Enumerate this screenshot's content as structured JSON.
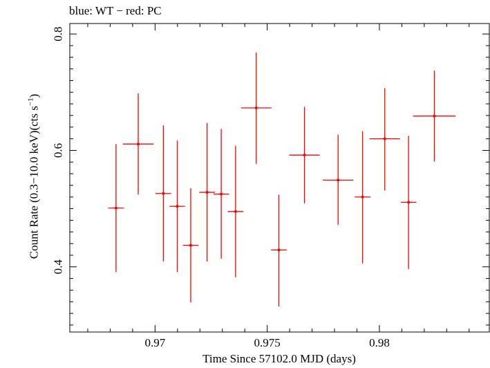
{
  "chart_data": {
    "type": "scatter",
    "title": "blue: WT − red: PC",
    "xlabel": "Time Since 57102.0 MJD (days)",
    "ylabel_main": "Count Rate (0.3−10.0 keV)(cts s",
    "ylabel_exp": "−1",
    "ylabel_close": ")",
    "xlim": [
      0.9662,
      0.9849
    ],
    "ylim": [
      0.288,
      0.818
    ],
    "xticks": [
      {
        "value": 0.97,
        "label": "0.97"
      },
      {
        "value": 0.975,
        "label": "0.975"
      },
      {
        "value": 0.98,
        "label": "0.98"
      }
    ],
    "yticks": [
      {
        "value": 0.4,
        "label": "0.4"
      },
      {
        "value": 0.6,
        "label": "0.6"
      },
      {
        "value": 0.8,
        "label": "0.8"
      }
    ],
    "series": [
      {
        "color": "#ff0000",
        "points": [
          {
            "x": 0.96826,
            "y": 0.501,
            "xerr": 0.00035,
            "ylo": 0.391,
            "yhi": 0.611
          },
          {
            "x": 0.96925,
            "y": 0.611,
            "xerr": 0.00068,
            "ylo": 0.524,
            "yhi": 0.698
          },
          {
            "x": 0.97037,
            "y": 0.526,
            "xerr": 0.00035,
            "ylo": 0.409,
            "yhi": 0.643
          },
          {
            "x": 0.97099,
            "y": 0.504,
            "xerr": 0.00035,
            "ylo": 0.391,
            "yhi": 0.617
          },
          {
            "x": 0.97159,
            "y": 0.437,
            "xerr": 0.00035,
            "ylo": 0.339,
            "yhi": 0.535
          },
          {
            "x": 0.97232,
            "y": 0.528,
            "xerr": 0.00035,
            "ylo": 0.409,
            "yhi": 0.647
          },
          {
            "x": 0.97295,
            "y": 0.525,
            "xerr": 0.00035,
            "ylo": 0.414,
            "yhi": 0.637
          },
          {
            "x": 0.97359,
            "y": 0.495,
            "xerr": 0.00035,
            "ylo": 0.382,
            "yhi": 0.608
          },
          {
            "x": 0.97451,
            "y": 0.673,
            "xerr": 0.00068,
            "ylo": 0.577,
            "yhi": 0.768
          },
          {
            "x": 0.97552,
            "y": 0.429,
            "xerr": 0.00035,
            "ylo": 0.332,
            "yhi": 0.524
          },
          {
            "x": 0.97666,
            "y": 0.592,
            "xerr": 0.00068,
            "ylo": 0.509,
            "yhi": 0.675
          },
          {
            "x": 0.97816,
            "y": 0.549,
            "xerr": 0.00068,
            "ylo": 0.472,
            "yhi": 0.627
          },
          {
            "x": 0.97925,
            "y": 0.52,
            "xerr": 0.00035,
            "ylo": 0.406,
            "yhi": 0.633
          },
          {
            "x": 0.98024,
            "y": 0.62,
            "xerr": 0.00068,
            "ylo": 0.531,
            "yhi": 0.707
          },
          {
            "x": 0.9813,
            "y": 0.511,
            "xerr": 0.00035,
            "ylo": 0.396,
            "yhi": 0.625
          },
          {
            "x": 0.98245,
            "y": 0.659,
            "xerr": 0.00095,
            "ylo": 0.581,
            "yhi": 0.737
          }
        ]
      }
    ]
  }
}
